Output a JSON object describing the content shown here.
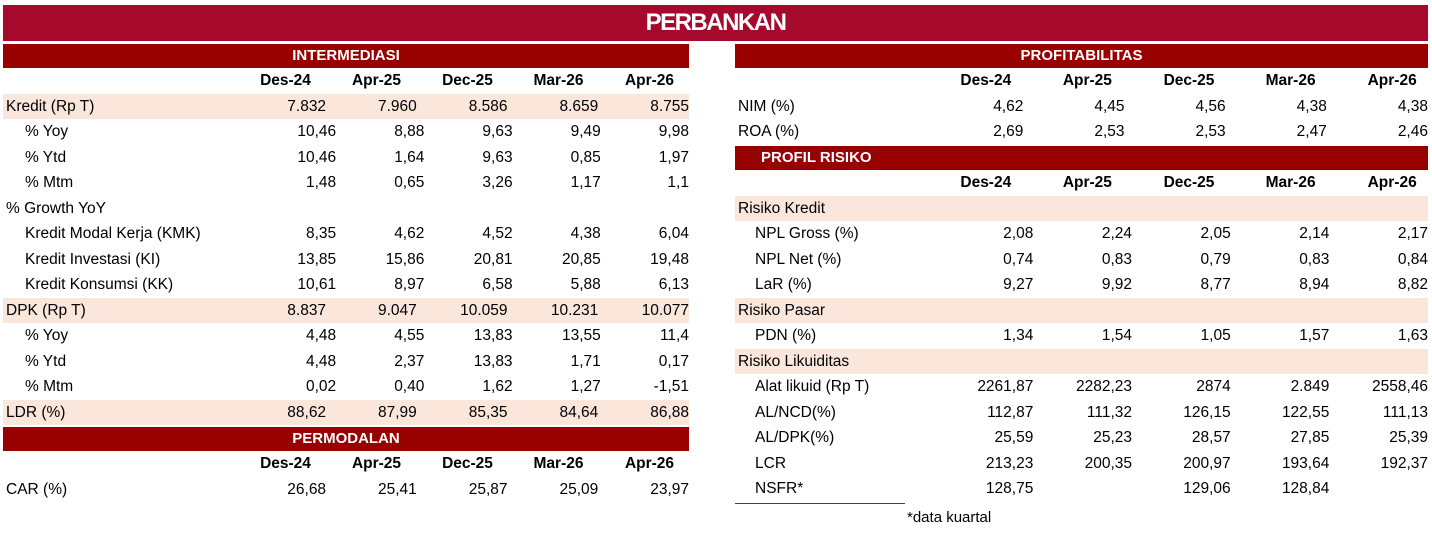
{
  "title": "PERBANKAN",
  "intermediasi": {
    "header": "INTERMEDIASI",
    "columns": [
      "Des-24",
      "Apr-25",
      "Dec-25",
      "Mar-26",
      "Apr-26"
    ],
    "rows": [
      {
        "label": "Kredit (Rp T)",
        "values": [
          "7.832",
          "7.960",
          "8.586",
          "8.659",
          "8.755"
        ]
      },
      {
        "label": "% Yoy",
        "values": [
          "10,46",
          "8,88",
          "9,63",
          "9,49",
          "9,98"
        ]
      },
      {
        "label": "% Ytd",
        "values": [
          "10,46",
          "1,64",
          "9,63",
          "0,85",
          "1,97"
        ]
      },
      {
        "label": "% Mtm",
        "values": [
          "1,48",
          "0,65",
          "3,26",
          "1,17",
          "1,1"
        ]
      },
      {
        "label": "% Growth YoY",
        "values": [
          "",
          "",
          "",
          "",
          ""
        ]
      },
      {
        "label": "Kredit Modal Kerja (KMK)",
        "values": [
          "8,35",
          "4,62",
          "4,52",
          "4,38",
          "6,04"
        ]
      },
      {
        "label": "Kredit Investasi (KI)",
        "values": [
          "13,85",
          "15,86",
          "20,81",
          "20,85",
          "19,48"
        ]
      },
      {
        "label": "Kredit Konsumsi (KK)",
        "values": [
          "10,61",
          "8,97",
          "6,58",
          "5,88",
          "6,13"
        ]
      },
      {
        "label": "DPK (Rp T)",
        "values": [
          "8.837",
          "9.047",
          "10.059",
          "10.231",
          "10.077"
        ]
      },
      {
        "label": "% Yoy",
        "values": [
          "4,48",
          "4,55",
          "13,83",
          "13,55",
          "11,4"
        ]
      },
      {
        "label": "% Ytd",
        "values": [
          "4,48",
          "2,37",
          "13,83",
          "1,71",
          "0,17"
        ]
      },
      {
        "label": "% Mtm",
        "values": [
          "0,02",
          "0,40",
          "1,62",
          "1,27",
          "-1,51"
        ]
      },
      {
        "label": "LDR (%)",
        "values": [
          "88,62",
          "87,99",
          "85,35",
          "84,64",
          "86,88"
        ]
      }
    ]
  },
  "permodalan": {
    "header": "PERMODALAN",
    "columns": [
      "Des-24",
      "Apr-25",
      "Dec-25",
      "Mar-26",
      "Apr-26"
    ],
    "rows": [
      {
        "label": "CAR (%)",
        "values": [
          "26,68",
          "25,41",
          "25,87",
          "25,09",
          "23,97"
        ]
      }
    ]
  },
  "profitabilitas": {
    "header": "PROFITABILITAS",
    "columns": [
      "Des-24",
      "Apr-25",
      "Dec-25",
      "Mar-26",
      "Apr-26"
    ],
    "rows": [
      {
        "label": "NIM (%)",
        "values": [
          "4,62",
          "4,45",
          "4,56",
          "4,38",
          "4,38"
        ]
      },
      {
        "label": "ROA (%)",
        "values": [
          "2,69",
          "2,53",
          "2,53",
          "2,47",
          "2,46"
        ]
      }
    ]
  },
  "profil_risiko": {
    "header": "PROFIL RISIKO",
    "columns": [
      "Des-24",
      "Apr-25",
      "Dec-25",
      "Mar-26",
      "Apr-26"
    ],
    "rows": [
      {
        "label": "Risiko Kredit",
        "values": [
          "",
          "",
          "",
          "",
          ""
        ]
      },
      {
        "label": "NPL Gross (%)",
        "values": [
          "2,08",
          "2,24",
          "2,05",
          "2,14",
          "2,17"
        ]
      },
      {
        "label": "NPL Net (%)",
        "values": [
          "0,74",
          "0,83",
          "0,79",
          "0,83",
          "0,84"
        ]
      },
      {
        "label": "LaR (%)",
        "values": [
          "9,27",
          "9,92",
          "8,77",
          "8,94",
          "8,82"
        ]
      },
      {
        "label": "Risiko Pasar",
        "values": [
          "",
          "",
          "",
          "",
          ""
        ]
      },
      {
        "label": "PDN (%)",
        "values": [
          "1,34",
          "1,54",
          "1,05",
          "1,57",
          "1,63"
        ]
      },
      {
        "label": "Risiko Likuiditas",
        "values": [
          "",
          "",
          "",
          "",
          ""
        ]
      },
      {
        "label": "Alat likuid (Rp T)",
        "values": [
          "2261,87",
          "2282,23",
          "2874",
          "2.849",
          "2558,46"
        ]
      },
      {
        "label": "AL/NCD(%)",
        "values": [
          "112,87",
          "111,32",
          "126,15",
          "122,55",
          "111,13"
        ]
      },
      {
        "label": "AL/DPK(%)",
        "values": [
          "25,59",
          "25,23",
          "28,57",
          "27,85",
          "25,39"
        ]
      },
      {
        "label": "LCR",
        "values": [
          "213,23",
          "200,35",
          "200,97",
          "193,64",
          "192,37"
        ]
      },
      {
        "label": "NSFR*",
        "values": [
          "128,75",
          "",
          "129,06",
          "128,84",
          ""
        ]
      }
    ]
  },
  "note": "*data kuartal",
  "colors": {
    "title_bg": "#a50a2c",
    "header_bg": "#990000",
    "highlight_row": "#fbe6dc"
  }
}
